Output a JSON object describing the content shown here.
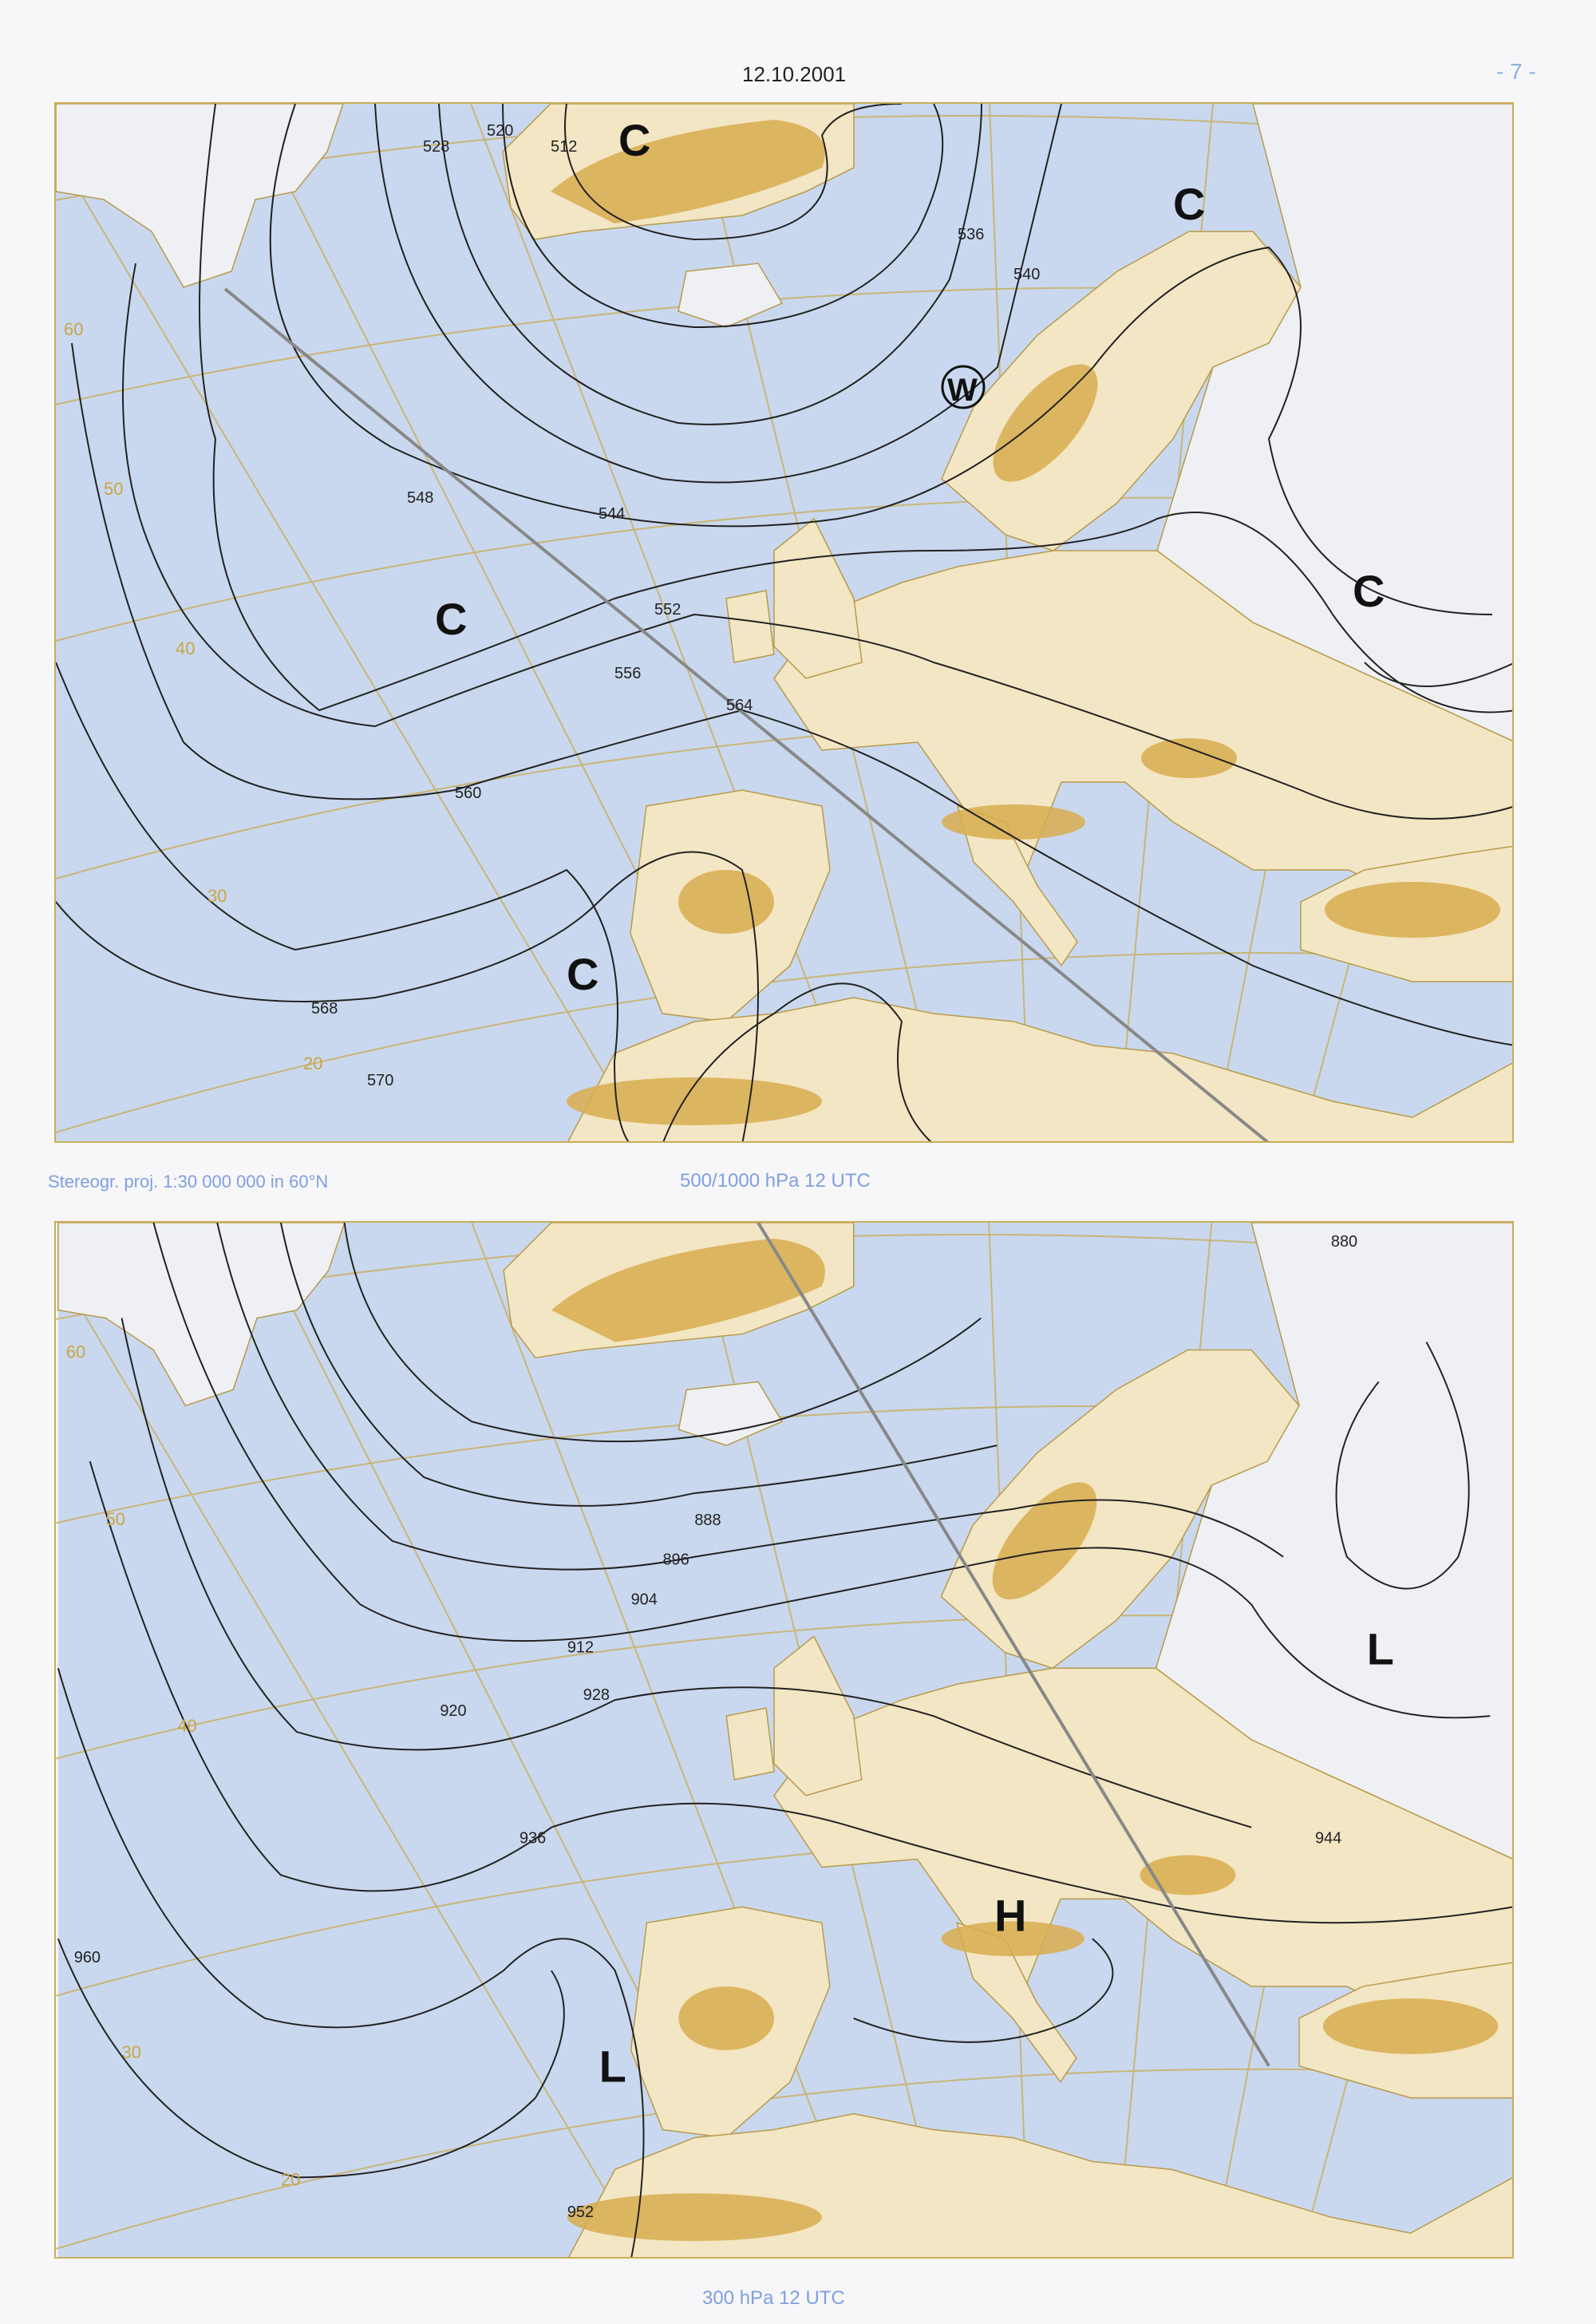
{
  "header": {
    "date": "12.10.2001",
    "page_number": "- 7 -"
  },
  "colors": {
    "sea": "#c9d8ee",
    "land": "#f3e6c4",
    "high_terrain": "#d9ad4f",
    "snow_land": "#eef0f3",
    "grid": "#c9ad5a",
    "contour": "#222222",
    "caption": "#7f9fe0"
  },
  "top_map": {
    "caption": "500/1000 hPa 12 UTC",
    "projection": "Stereogr. proj. 1:30 000 000 in 60°N",
    "centers": [
      {
        "label": "C"
      },
      {
        "label": "C"
      },
      {
        "label": "W"
      },
      {
        "label": "C"
      },
      {
        "label": "C"
      },
      {
        "label": "C"
      }
    ],
    "contour_labels": [
      "512",
      "520",
      "528",
      "536",
      "540",
      "544",
      "548",
      "552",
      "556",
      "560",
      "564",
      "568",
      "570"
    ],
    "lat_labels": [
      "60",
      "50",
      "40",
      "30",
      "20"
    ]
  },
  "bottom_map": {
    "caption": "300 hPa 12 UTC",
    "centers": [
      {
        "label": "L"
      },
      {
        "label": "H"
      },
      {
        "label": "L"
      }
    ],
    "contour_labels": [
      "880",
      "888",
      "896",
      "904",
      "912",
      "920",
      "928",
      "936",
      "944",
      "952",
      "960"
    ],
    "lat_labels": [
      "60",
      "50",
      "40",
      "30",
      "20"
    ]
  }
}
